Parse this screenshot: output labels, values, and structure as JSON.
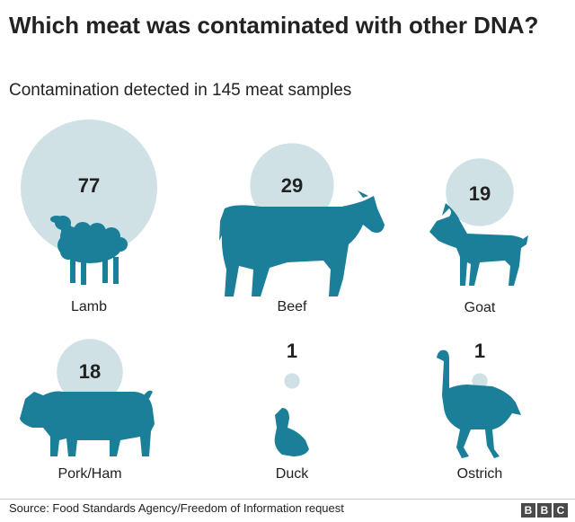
{
  "title": "Which meat was contaminated with other DNA?",
  "subtitle": "Contamination detected in 145 meat samples",
  "source": "Source: Food Standards Agency/Freedom of Information request",
  "logo": [
    "B",
    "B",
    "C"
  ],
  "colors": {
    "bubble": "#d0e1e6",
    "animal": "#1b7f99",
    "text": "#222222"
  },
  "chart_data": {
    "type": "bubble",
    "title": "Which meat was contaminated with other DNA?",
    "subtitle": "Contamination detected in 145 meat samples",
    "categories": [
      "Lamb",
      "Beef",
      "Goat",
      "Pork/Ham",
      "Duck",
      "Ostrich"
    ],
    "values": [
      77,
      29,
      19,
      18,
      1,
      1
    ],
    "icons": [
      "sheep-icon",
      "cow-icon",
      "goat-icon",
      "pig-icon",
      "duck-icon",
      "ostrich-icon"
    ]
  }
}
